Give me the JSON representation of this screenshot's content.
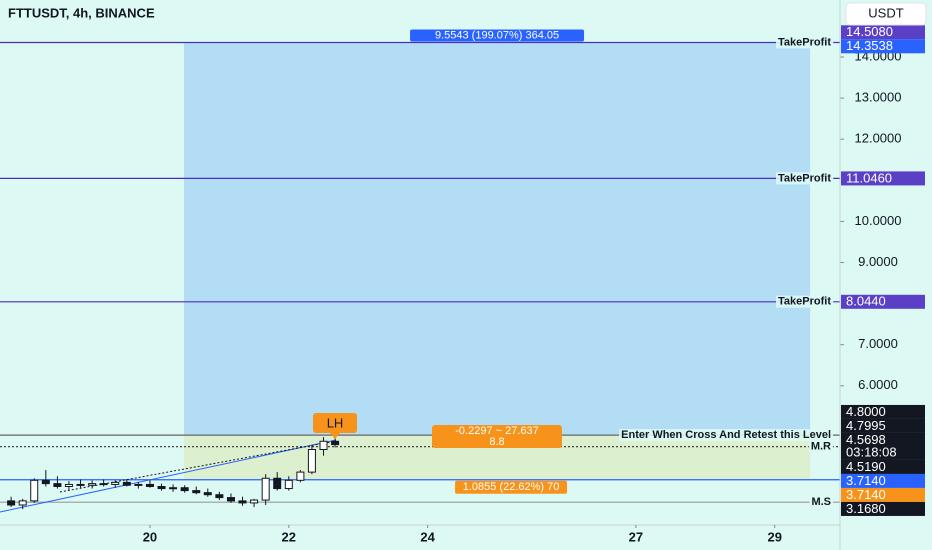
{
  "chart_data": {
    "type": "candlestick",
    "title": "FTTUSDT, 4h, BINANCE",
    "currency": "USDT",
    "xlim": [
      17.84,
      29.94
    ],
    "xticks": [
      20,
      22,
      24,
      27,
      29
    ],
    "ylim": [
      2.613,
      15.387
    ],
    "yticks": [
      {
        "value": 14,
        "label": "14.0000"
      },
      {
        "value": 13,
        "label": "13.0000"
      },
      {
        "value": 12,
        "label": "12.0000"
      },
      {
        "value": 10,
        "label": "10.0000"
      },
      {
        "value": 9,
        "label": "9.0000"
      },
      {
        "value": 7,
        "label": "7.0000"
      },
      {
        "value": 6,
        "label": "6.0000"
      }
    ],
    "x": [
      18,
      18.167,
      18.333,
      18.5,
      18.667,
      18.833,
      19,
      19.167,
      19.333,
      19.5,
      19.667,
      19.833,
      20,
      20.167,
      20.333,
      20.5,
      20.667,
      20.833,
      21,
      21.167,
      21.333,
      21.5,
      21.667,
      21.833,
      22,
      22.167,
      22.333,
      22.5,
      22.667
    ],
    "open": [
      3.2,
      3.1,
      3.2,
      3.7,
      3.62,
      3.55,
      3.6,
      3.58,
      3.62,
      3.6,
      3.65,
      3.58,
      3.6,
      3.55,
      3.5,
      3.52,
      3.45,
      3.4,
      3.35,
      3.28,
      3.2,
      3.15,
      3.22,
      3.75,
      3.5,
      3.7,
      3.9,
      4.45,
      4.65
    ],
    "high": [
      3.3,
      3.25,
      3.75,
      3.95,
      3.8,
      3.68,
      3.72,
      3.7,
      3.72,
      3.7,
      3.72,
      3.66,
      3.7,
      3.62,
      3.6,
      3.58,
      3.55,
      3.5,
      3.42,
      3.38,
      3.3,
      3.25,
      3.85,
      3.9,
      3.8,
      3.95,
      4.55,
      4.75,
      4.8
    ],
    "low": [
      3.05,
      3.0,
      3.15,
      3.55,
      3.5,
      3.45,
      3.52,
      3.5,
      3.55,
      3.52,
      3.55,
      3.5,
      3.52,
      3.45,
      3.42,
      3.4,
      3.36,
      3.3,
      3.22,
      3.15,
      3.08,
      3.05,
      3.1,
      3.45,
      3.45,
      3.65,
      3.85,
      4.3,
      4.5
    ],
    "close": [
      3.1,
      3.2,
      3.7,
      3.62,
      3.55,
      3.6,
      3.58,
      3.62,
      3.6,
      3.65,
      3.58,
      3.6,
      3.55,
      3.5,
      3.52,
      3.45,
      3.4,
      3.35,
      3.28,
      3.2,
      3.15,
      3.22,
      3.75,
      3.5,
      3.7,
      3.9,
      4.45,
      4.65,
      4.5698
    ],
    "up_color": "#ffffff",
    "down_color": "#131722",
    "position": {
      "start": 20.49,
      "end": 29.51,
      "target": 14.3538,
      "entry": 4.8,
      "stop": 3.714,
      "target_color": "#b3ddf5",
      "stop_color": "#dcefcf",
      "target_label": "9.5543 (199.07%) 364.05",
      "stop_label": "1.0855 (22.62%) 70"
    },
    "levels": [
      {
        "value": 14.3538,
        "text": "TakeProfit",
        "color": "#4a2fbd"
      },
      {
        "value": 11.046,
        "text": "TakeProfit",
        "color": "#4a2fbd"
      },
      {
        "value": 8.044,
        "text": "TakeProfit",
        "color": "#4a2fbd"
      },
      {
        "value": 4.7995,
        "text": "Enter When Cross And Retest this Level",
        "color": "#666666"
      },
      {
        "value": 4.519,
        "text": "M.R",
        "color": "#333333",
        "dashed": true
      },
      {
        "value": 3.714,
        "color": "#2962ff"
      },
      {
        "value": 3.168,
        "text": "M.S",
        "color": "#9a9a9a"
      }
    ],
    "axis_labels": [
      {
        "value": 14.508,
        "label": "14.5080",
        "color": "#5b3fc4"
      },
      {
        "value": 14.3538,
        "label": "14.3538",
        "color": "#2962ff"
      },
      {
        "value": 11.046,
        "label": "11.0460",
        "color": "#5b3fc4"
      },
      {
        "value": 8.044,
        "label": "8.0440",
        "color": "#5b3fc4"
      },
      {
        "value": 4.8,
        "label": "4.8000",
        "color": "#131722"
      },
      {
        "value": 4.7995,
        "label": "4.7995",
        "color": "#131722"
      },
      {
        "value": 4.5698,
        "label": "4.5698",
        "color": "#131722",
        "sub": "03:18:08"
      },
      {
        "value": 4.519,
        "label": "4.5190",
        "color": "#131722"
      },
      {
        "value": 3.714,
        "label": "3.7140",
        "color": "#2962ff"
      },
      {
        "value": 3.714,
        "label": "3.7140",
        "color": "#f7931a"
      },
      {
        "value": 3.168,
        "label": "3.1680",
        "color": "#131722"
      }
    ],
    "annotations": {
      "peak": "LH",
      "range_top": "-0.2297 ~ 27.637",
      "range_bottom": "8.8"
    }
  }
}
